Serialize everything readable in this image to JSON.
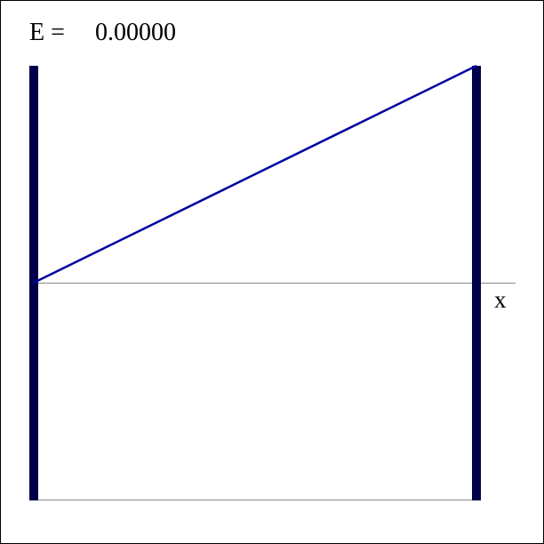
{
  "header": {
    "energy_label": "E =",
    "energy_value": "0.00000"
  },
  "chart_data": {
    "type": "line",
    "title": "",
    "xlabel": "x",
    "ylabel": "",
    "xlim": [
      0,
      1
    ],
    "ylim": [
      -1,
      1
    ],
    "grid": false,
    "series": [
      {
        "x": [
          0,
          1
        ],
        "y": [
          0,
          1
        ]
      }
    ]
  },
  "colors": {
    "wall": "#00004a",
    "wavefunction": "#0000a0",
    "axis": "#888888",
    "border": "#000000"
  }
}
